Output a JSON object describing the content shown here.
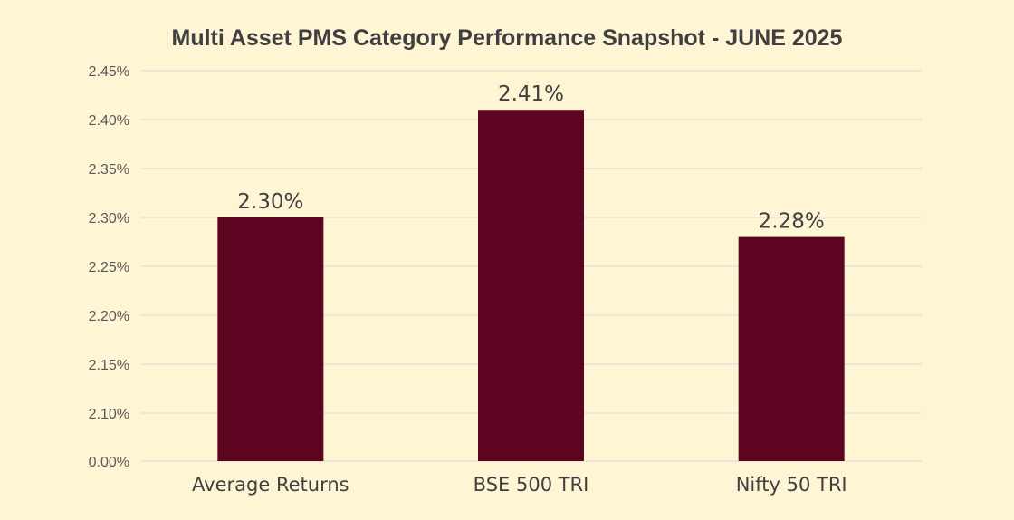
{
  "chart_data": {
    "type": "bar",
    "title": "Multi Asset PMS Category Performance Snapshot - JUNE 2025",
    "categories": [
      "Average Returns",
      "BSE 500 TRI",
      "Nifty 50 TRI"
    ],
    "values": [
      2.3,
      2.41,
      2.28
    ],
    "data_labels": [
      "2.30%",
      "2.41%",
      "2.28%"
    ],
    "y_ticks": [
      {
        "label": "0.00%",
        "value": 0.0
      },
      {
        "label": "2.10%",
        "value": 2.1
      },
      {
        "label": "2.15%",
        "value": 2.15
      },
      {
        "label": "2.20%",
        "value": 2.2
      },
      {
        "label": "2.25%",
        "value": 2.25
      },
      {
        "label": "2.30%",
        "value": 2.3
      },
      {
        "label": "2.35%",
        "value": 2.35
      },
      {
        "label": "2.40%",
        "value": 2.4
      },
      {
        "label": "2.45%",
        "value": 2.45
      }
    ],
    "y_axis_break": true,
    "grid": true,
    "legend": "none",
    "bar_color": "#5c0420",
    "background_color": "#fdf5d4"
  }
}
